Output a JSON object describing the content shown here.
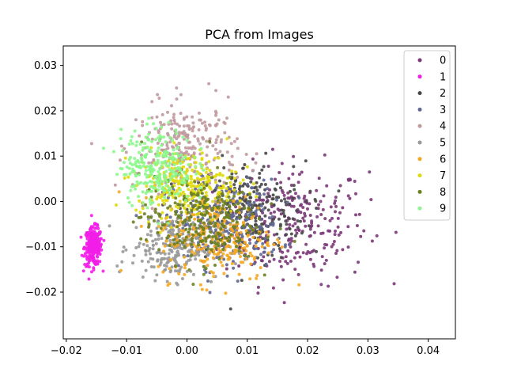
{
  "chart_data": {
    "type": "scatter",
    "title": "PCA from Images",
    "xlabel": "",
    "ylabel": "",
    "xlim": [
      -0.0205,
      0.0445
    ],
    "ylim": [
      -0.0303,
      0.0343
    ],
    "xticks": [
      -0.02,
      -0.01,
      0.0,
      0.01,
      0.02,
      0.03,
      0.04
    ],
    "xtick_labels": [
      "−0.02",
      "−0.01",
      "0.00",
      "0.01",
      "0.02",
      "0.03",
      "0.04"
    ],
    "yticks": [
      -0.02,
      -0.01,
      0.0,
      0.01,
      0.02,
      0.03
    ],
    "ytick_labels": [
      "−0.02",
      "−0.01",
      "0.00",
      "0.01",
      "0.02",
      "0.03"
    ],
    "grid": false,
    "legend_position": "top-right",
    "series": [
      {
        "name": "0",
        "color": "#7b3779",
        "center": [
          0.018,
          -0.005
        ],
        "spread": [
          0.01,
          0.011
        ]
      },
      {
        "name": "1",
        "color": "#f21ee8",
        "center": [
          -0.0155,
          -0.01
        ],
        "spread": [
          0.0012,
          0.0035
        ]
      },
      {
        "name": "2",
        "color": "#474747",
        "center": [
          0.01,
          -0.002
        ],
        "spread": [
          0.008,
          0.009
        ]
      },
      {
        "name": "3",
        "color": "#5e6793",
        "center": [
          0.006,
          -0.005
        ],
        "spread": [
          0.008,
          0.008
        ]
      },
      {
        "name": "4",
        "color": "#c09a9e",
        "center": [
          0.0,
          0.012
        ],
        "spread": [
          0.007,
          0.008
        ]
      },
      {
        "name": "5",
        "color": "#999999",
        "center": [
          -0.002,
          -0.01
        ],
        "spread": [
          0.006,
          0.006
        ]
      },
      {
        "name": "6",
        "color": "#f6a722",
        "center": [
          0.005,
          -0.008
        ],
        "spread": [
          0.008,
          0.008
        ]
      },
      {
        "name": "7",
        "color": "#e0da0d",
        "center": [
          0.0,
          0.004
        ],
        "spread": [
          0.007,
          0.006
        ]
      },
      {
        "name": "8",
        "color": "#6b801f",
        "center": [
          0.002,
          -0.004
        ],
        "spread": [
          0.008,
          0.008
        ]
      },
      {
        "name": "9",
        "color": "#8cf78c",
        "center": [
          -0.005,
          0.008
        ],
        "spread": [
          0.005,
          0.007
        ]
      }
    ]
  }
}
